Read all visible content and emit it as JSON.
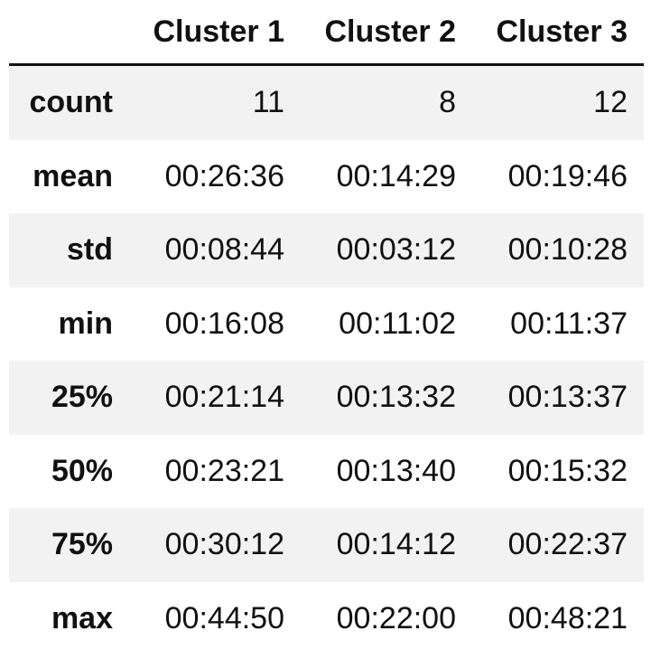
{
  "table": {
    "columns": [
      "Cluster 1",
      "Cluster 2",
      "Cluster 3"
    ],
    "rows": [
      {
        "index": "count",
        "values": [
          "11",
          "8",
          "12"
        ]
      },
      {
        "index": "mean",
        "values": [
          "00:26:36",
          "00:14:29",
          "00:19:46"
        ]
      },
      {
        "index": "std",
        "values": [
          "00:08:44",
          "00:03:12",
          "00:10:28"
        ]
      },
      {
        "index": "min",
        "values": [
          "00:16:08",
          "00:11:02",
          "00:11:37"
        ]
      },
      {
        "index": "25%",
        "values": [
          "00:21:14",
          "00:13:32",
          "00:13:37"
        ]
      },
      {
        "index": "50%",
        "values": [
          "00:23:21",
          "00:13:40",
          "00:15:32"
        ]
      },
      {
        "index": "75%",
        "values": [
          "00:30:12",
          "00:14:12",
          "00:22:37"
        ]
      },
      {
        "index": "max",
        "values": [
          "00:44:50",
          "00:22:00",
          "00:48:21"
        ]
      }
    ]
  }
}
